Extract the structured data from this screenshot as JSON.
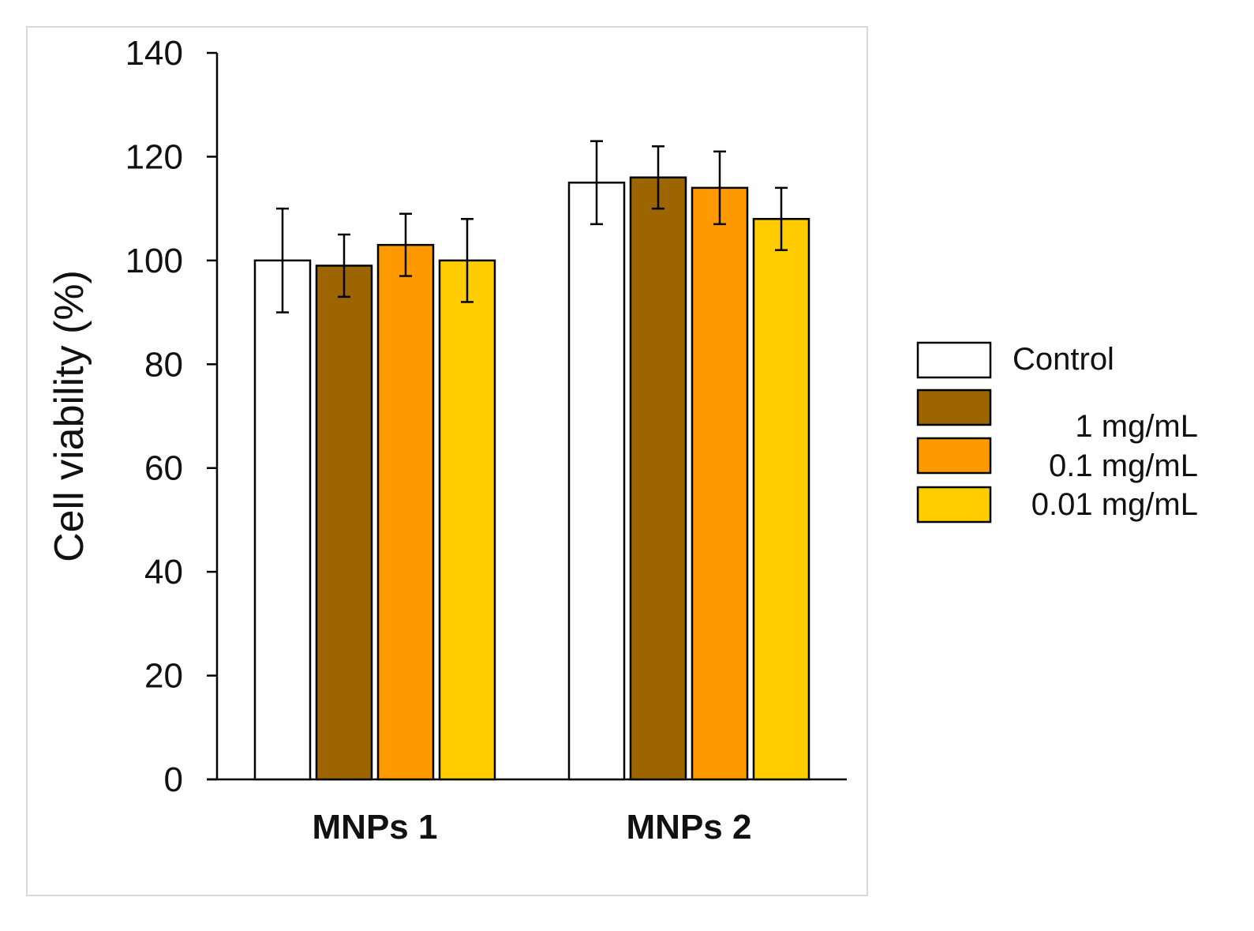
{
  "chart_data": {
    "type": "bar",
    "title": "",
    "xlabel": "",
    "ylabel": "Cell viability (%)",
    "ylim": [
      0,
      140
    ],
    "yticks": [
      0,
      20,
      40,
      60,
      80,
      100,
      120,
      140
    ],
    "categories": [
      "MNPs 1",
      "MNPs 2"
    ],
    "series": [
      {
        "name": "Control",
        "color": "#FFFFFF",
        "values": [
          100,
          115
        ],
        "errors": [
          10,
          8
        ]
      },
      {
        "name": "1 mg/mL",
        "color": "#9C6500",
        "values": [
          99,
          116
        ],
        "errors": [
          6,
          6
        ]
      },
      {
        "name": "0.1 mg/mL",
        "color": "#FF9900",
        "values": [
          103,
          114
        ],
        "errors": [
          6,
          7
        ]
      },
      {
        "name": "0.01 mg/mL",
        "color": "#FFCC00",
        "values": [
          100,
          108
        ],
        "errors": [
          8,
          6
        ]
      }
    ],
    "legend_position": "right",
    "grid": false
  }
}
